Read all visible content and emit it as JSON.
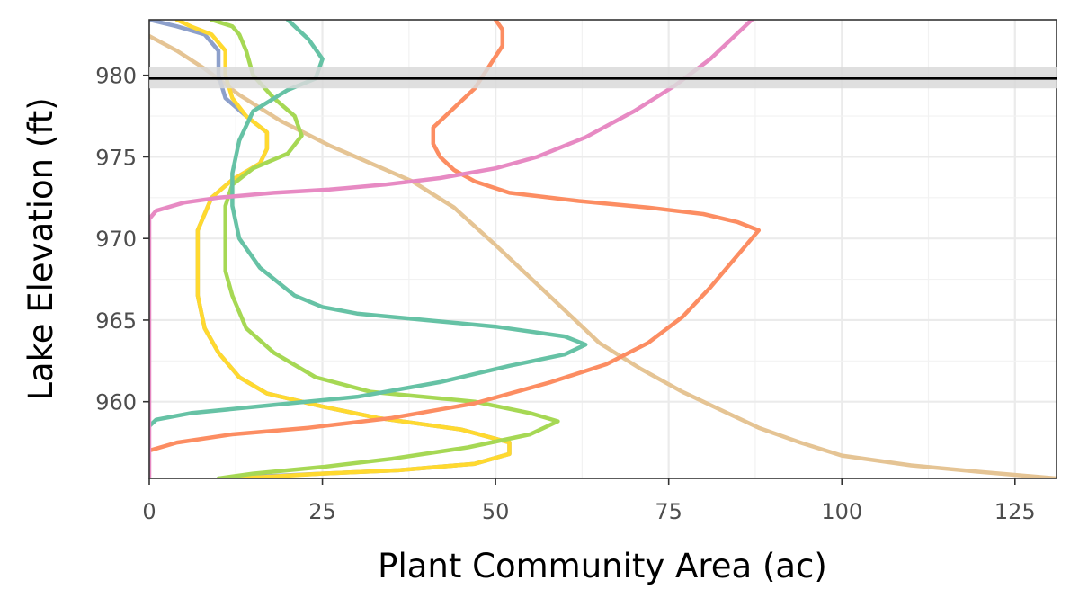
{
  "chart_data": {
    "type": "line",
    "title": "",
    "xlabel": "Plant Community Area (ac)",
    "ylabel": "Lake Elevation (ft)",
    "xlim": [
      0,
      131
    ],
    "ylim": [
      955.3,
      983.4
    ],
    "x_ticks": [
      0,
      25,
      50,
      75,
      100,
      125
    ],
    "y_ticks": [
      960,
      965,
      970,
      975,
      980
    ],
    "grid": true,
    "legend": "none",
    "reference_line": {
      "y": 979.8,
      "band": [
        979.2,
        980.5
      ],
      "color": "#000000",
      "band_color": "#d9d9d9"
    },
    "series": [
      {
        "color": "#e5c494",
        "points": [
          [
            0,
            982.4
          ],
          [
            4,
            981.5
          ],
          [
            8,
            980.4
          ],
          [
            13,
            978.8
          ],
          [
            19,
            977.2
          ],
          [
            26,
            975.7
          ],
          [
            32,
            974.6
          ],
          [
            38,
            973.5
          ],
          [
            44,
            971.9
          ],
          [
            50,
            969.6
          ],
          [
            56,
            967.2
          ],
          [
            61,
            965.2
          ],
          [
            65,
            963.6
          ],
          [
            71,
            962.0
          ],
          [
            77,
            960.6
          ],
          [
            82,
            959.6
          ],
          [
            88,
            958.4
          ],
          [
            94,
            957.5
          ],
          [
            100,
            956.7
          ],
          [
            110,
            956.1
          ],
          [
            120,
            955.7
          ],
          [
            131,
            955.3
          ]
        ]
      },
      {
        "color": "#8da0cb",
        "points": [
          [
            0,
            983.4
          ],
          [
            4,
            983.0
          ],
          [
            8,
            982.5
          ],
          [
            10,
            981.5
          ],
          [
            10,
            980.0
          ],
          [
            11,
            978.6
          ],
          [
            14,
            977.5
          ],
          [
            17,
            976.5
          ],
          [
            17,
            975.5
          ],
          [
            16,
            974.6
          ],
          [
            12,
            973.6
          ],
          [
            9,
            972.5
          ],
          [
            7,
            970.5
          ],
          [
            7,
            968.0
          ],
          [
            7,
            966.5
          ],
          [
            8,
            964.5
          ],
          [
            10,
            963.0
          ],
          [
            13,
            961.5
          ],
          [
            17,
            960.5
          ],
          [
            25,
            959.7
          ],
          [
            33,
            959.0
          ],
          [
            45,
            958.3
          ],
          [
            52,
            957.5
          ],
          [
            52,
            956.8
          ],
          [
            47,
            956.2
          ],
          [
            36,
            955.8
          ],
          [
            25,
            955.6
          ],
          [
            10,
            955.3
          ]
        ]
      },
      {
        "color": "#ffd92f",
        "points": [
          [
            4,
            983.4
          ],
          [
            6,
            983.0
          ],
          [
            9,
            982.5
          ],
          [
            11,
            981.5
          ],
          [
            11,
            980.0
          ],
          [
            12,
            978.6
          ],
          [
            14,
            977.5
          ],
          [
            17,
            976.5
          ],
          [
            17,
            975.5
          ],
          [
            16,
            974.6
          ],
          [
            12,
            973.6
          ],
          [
            9,
            972.5
          ],
          [
            7,
            970.5
          ],
          [
            7,
            968.0
          ],
          [
            7,
            966.5
          ],
          [
            8,
            964.5
          ],
          [
            10,
            963.0
          ],
          [
            13,
            961.5
          ],
          [
            17,
            960.5
          ],
          [
            25,
            959.7
          ],
          [
            33,
            959.0
          ],
          [
            45,
            958.3
          ],
          [
            52,
            957.5
          ],
          [
            52,
            956.8
          ],
          [
            47,
            956.2
          ],
          [
            36,
            955.8
          ],
          [
            25,
            955.6
          ],
          [
            13,
            955.3
          ]
        ]
      },
      {
        "color": "#a6d854",
        "points": [
          [
            9,
            983.4
          ],
          [
            12,
            983.0
          ],
          [
            13,
            982.5
          ],
          [
            14,
            981.5
          ],
          [
            15,
            980.0
          ],
          [
            18,
            978.6
          ],
          [
            21,
            977.5
          ],
          [
            22,
            976.3
          ],
          [
            20,
            975.2
          ],
          [
            15,
            974.3
          ],
          [
            12,
            973.3
          ],
          [
            11,
            972.0
          ],
          [
            11,
            970.0
          ],
          [
            11,
            968.0
          ],
          [
            12,
            966.5
          ],
          [
            14,
            964.5
          ],
          [
            18,
            963.0
          ],
          [
            24,
            961.5
          ],
          [
            32,
            960.6
          ],
          [
            47,
            960.0
          ],
          [
            55,
            959.3
          ],
          [
            59,
            958.8
          ],
          [
            55,
            958.0
          ],
          [
            46,
            957.2
          ],
          [
            35,
            956.5
          ],
          [
            25,
            956.0
          ],
          [
            15,
            955.6
          ],
          [
            10,
            955.3
          ]
        ]
      },
      {
        "color": "#66c2a5",
        "points": [
          [
            20,
            983.4
          ],
          [
            21,
            983.0
          ],
          [
            23,
            982.2
          ],
          [
            25,
            981.0
          ],
          [
            24,
            979.8
          ],
          [
            20,
            979.1
          ],
          [
            15,
            977.8
          ],
          [
            13,
            976.0
          ],
          [
            12,
            974.0
          ],
          [
            12,
            972.0
          ],
          [
            13,
            970.0
          ],
          [
            16,
            968.2
          ],
          [
            21,
            966.5
          ],
          [
            25,
            965.8
          ],
          [
            30,
            965.4
          ],
          [
            40,
            965.0
          ],
          [
            50,
            964.6
          ],
          [
            60,
            964.0
          ],
          [
            63,
            963.5
          ],
          [
            60,
            962.9
          ],
          [
            52,
            962.2
          ],
          [
            42,
            961.2
          ],
          [
            30,
            960.3
          ],
          [
            18,
            959.8
          ],
          [
            6,
            959.3
          ],
          [
            1,
            958.9
          ],
          [
            0,
            958.5
          ]
        ]
      },
      {
        "color": "#fc8d62",
        "points": [
          [
            50,
            983.4
          ],
          [
            51,
            982.8
          ],
          [
            51,
            981.8
          ],
          [
            49,
            980.5
          ],
          [
            47,
            979.2
          ],
          [
            44,
            978.0
          ],
          [
            41,
            976.8
          ],
          [
            41,
            975.8
          ],
          [
            42,
            975.0
          ],
          [
            44,
            974.2
          ],
          [
            47,
            973.5
          ],
          [
            52,
            972.8
          ],
          [
            62,
            972.3
          ],
          [
            72,
            971.9
          ],
          [
            80,
            971.5
          ],
          [
            85,
            971.0
          ],
          [
            88,
            970.5
          ],
          [
            86,
            969.5
          ],
          [
            84,
            968.5
          ],
          [
            81,
            967.0
          ],
          [
            77,
            965.2
          ],
          [
            72,
            963.6
          ],
          [
            66,
            962.3
          ],
          [
            58,
            961.2
          ],
          [
            47,
            959.9
          ],
          [
            35,
            959.0
          ],
          [
            23,
            958.4
          ],
          [
            12,
            958.0
          ],
          [
            4,
            957.5
          ],
          [
            0,
            957.0
          ]
        ]
      },
      {
        "color": "#e78ac3",
        "points": [
          [
            0,
            955.3
          ],
          [
            0,
            960.0
          ],
          [
            0,
            965.0
          ],
          [
            0,
            970.0
          ],
          [
            0,
            971.2
          ],
          [
            1,
            971.7
          ],
          [
            5,
            972.2
          ],
          [
            10,
            972.5
          ],
          [
            18,
            972.8
          ],
          [
            26,
            973.0
          ],
          [
            34,
            973.3
          ],
          [
            42,
            973.7
          ],
          [
            50,
            974.3
          ],
          [
            56,
            975.0
          ],
          [
            63,
            976.2
          ],
          [
            70,
            977.8
          ],
          [
            76,
            979.4
          ],
          [
            81,
            981.0
          ],
          [
            86,
            983.0
          ],
          [
            87,
            983.4
          ]
        ]
      }
    ]
  }
}
